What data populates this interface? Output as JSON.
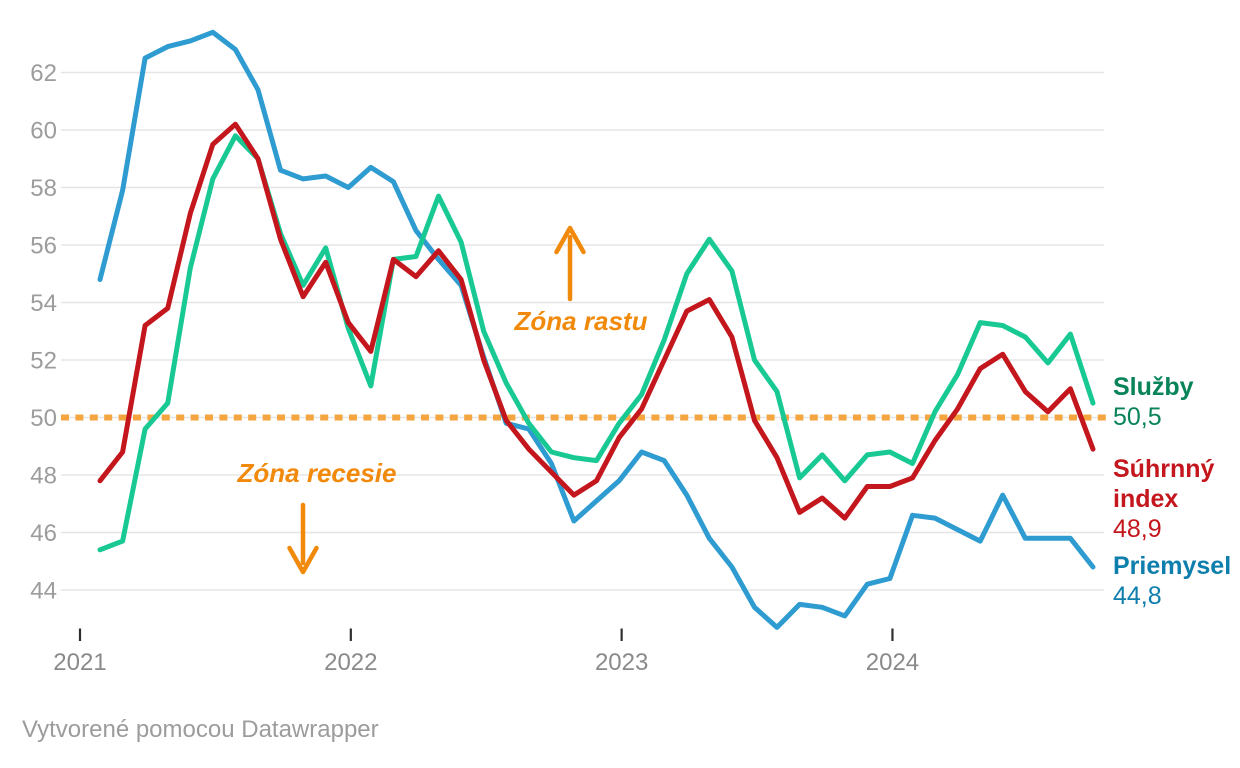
{
  "chart_data": {
    "type": "line",
    "x_start": "2021-01",
    "x_frequency": "monthly",
    "x_tick_labels": [
      "2021",
      "2022",
      "2023",
      "2024"
    ],
    "x_tick_month_indices": [
      0,
      12,
      24,
      36
    ],
    "y_ticks": [
      44,
      46,
      48,
      50,
      52,
      54,
      56,
      58,
      60,
      62
    ],
    "ylim": [
      42.5,
      63.6
    ],
    "grid": true,
    "legend_position": "right",
    "reference_line": {
      "value": 50,
      "style": "dotted",
      "color": "#F5A53F"
    },
    "series": [
      {
        "name": "Priemysel",
        "display_value": "44,8",
        "color": "#2E9BD1",
        "label_color": "#0E7EAD",
        "values": [
          54.8,
          57.9,
          62.5,
          62.9,
          63.1,
          63.4,
          62.8,
          61.4,
          58.6,
          58.3,
          58.4,
          58.0,
          58.7,
          58.2,
          56.5,
          55.5,
          54.6,
          52.1,
          49.8,
          49.6,
          48.4,
          46.4,
          47.1,
          47.8,
          48.8,
          48.5,
          47.3,
          45.8,
          44.8,
          43.4,
          42.7,
          43.5,
          43.4,
          43.1,
          44.2,
          44.4,
          46.6,
          46.5,
          46.1,
          45.7,
          47.3,
          45.8,
          45.8,
          45.8,
          44.8
        ]
      },
      {
        "name": "Služby",
        "display_value": "50,5",
        "color": "#18C993",
        "label_color": "#098358",
        "values": [
          45.4,
          45.7,
          49.6,
          50.5,
          55.2,
          58.3,
          59.8,
          59.0,
          56.4,
          54.6,
          55.9,
          53.1,
          51.1,
          55.5,
          55.6,
          57.7,
          56.1,
          53.0,
          51.2,
          49.8,
          48.8,
          48.6,
          48.5,
          49.8,
          50.8,
          52.7,
          55.0,
          56.2,
          55.1,
          52.0,
          50.9,
          47.9,
          48.7,
          47.8,
          48.7,
          48.8,
          48.4,
          50.2,
          51.5,
          53.3,
          53.2,
          52.8,
          51.9,
          52.9,
          50.5
        ]
      },
      {
        "name": "Súhrnný index",
        "display_value": "48,9",
        "color": "#C4161D",
        "label_color": "#C4161D",
        "values": [
          47.8,
          48.8,
          53.2,
          53.8,
          57.1,
          59.5,
          60.2,
          59.0,
          56.2,
          54.2,
          55.4,
          53.3,
          52.3,
          55.5,
          54.9,
          55.8,
          54.8,
          52.0,
          49.9,
          48.9,
          48.1,
          47.3,
          47.8,
          49.3,
          50.3,
          52.0,
          53.7,
          54.1,
          52.8,
          49.9,
          48.6,
          46.7,
          47.2,
          46.5,
          47.6,
          47.6,
          47.9,
          49.2,
          50.3,
          51.7,
          52.2,
          50.9,
          50.2,
          51.0,
          48.9
        ]
      }
    ],
    "annotations": [
      {
        "text": "Zóna rastu",
        "arrow": "up",
        "color": "#F18A0B"
      },
      {
        "text": "Zóna recesie",
        "arrow": "down",
        "color": "#F18A0B"
      }
    ]
  },
  "legend": {
    "entries": [
      {
        "name": "Služby",
        "value": "50,5"
      },
      {
        "name": "Súhrnný index",
        "value": "48,9"
      },
      {
        "name": "Priemysel",
        "value": "44,8"
      }
    ]
  },
  "footer": {
    "text": "Vytvorené pomocou Datawrapper"
  },
  "colors": {
    "grid": "#E5E5E5",
    "y_label": "#9C9C9C",
    "year_label": "#8A8A8A",
    "tick": "#2F2F2F",
    "dotted": "#F5A53F",
    "annotation": "#F18A0B"
  }
}
